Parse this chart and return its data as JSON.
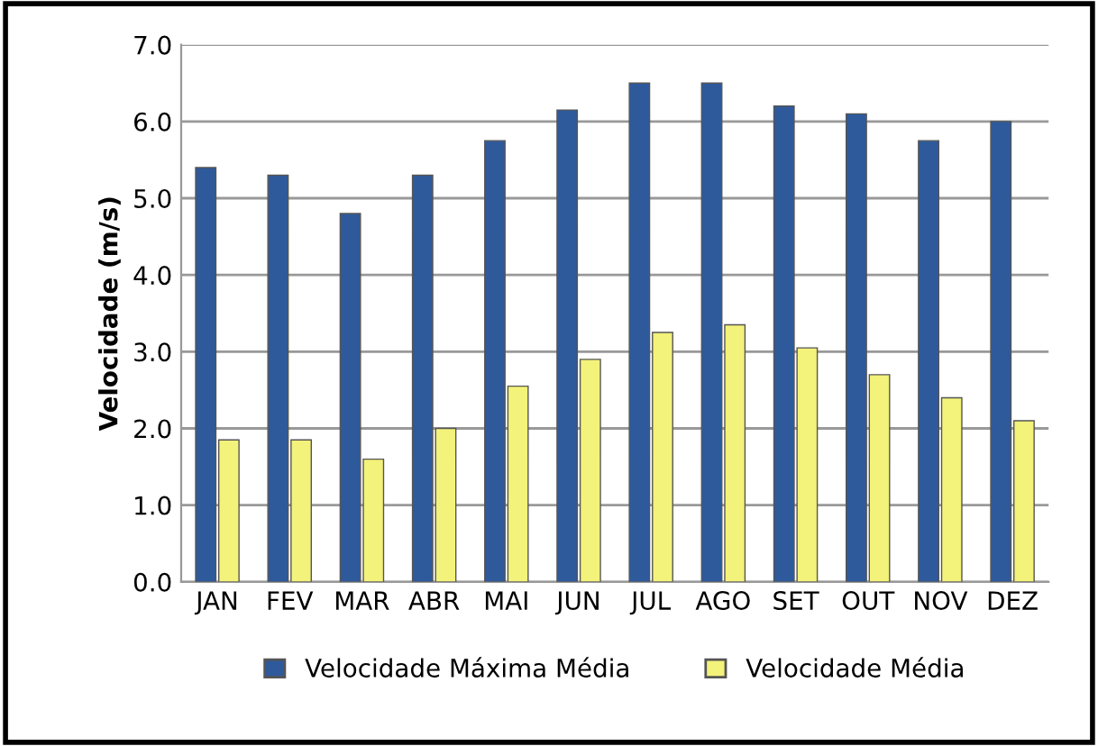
{
  "chart_data": {
    "type": "bar",
    "ylabel": "Velocidade (m/s)",
    "categories": [
      "JAN",
      "FEV",
      "MAR",
      "ABR",
      "MAI",
      "JUN",
      "JUL",
      "AGO",
      "SET",
      "OUT",
      "NOV",
      "DEZ"
    ],
    "series": [
      {
        "name": "Velocidade Máxima Média",
        "color": "#2e5a9c",
        "values": [
          5.4,
          5.3,
          4.8,
          5.3,
          5.75,
          6.15,
          6.5,
          6.5,
          6.2,
          6.1,
          5.75,
          6.0
        ]
      },
      {
        "name": "Velocidade Média",
        "color": "#f3f27a",
        "values": [
          1.85,
          1.85,
          1.6,
          2.0,
          2.55,
          2.9,
          3.25,
          3.35,
          3.05,
          2.7,
          2.4,
          2.1
        ]
      }
    ],
    "ylim": [
      0,
      7
    ],
    "yticks": [
      {
        "value": 0,
        "label": "0.0"
      },
      {
        "value": 1,
        "label": "1.0"
      },
      {
        "value": 2,
        "label": "2.0"
      },
      {
        "value": 3,
        "label": "3.0"
      },
      {
        "value": 4,
        "label": "4.0"
      },
      {
        "value": 5,
        "label": "5.0"
      },
      {
        "value": 6,
        "label": "6.0"
      },
      {
        "value": 7,
        "label": "7.0"
      }
    ],
    "grid": "y",
    "legend": "bottom"
  }
}
